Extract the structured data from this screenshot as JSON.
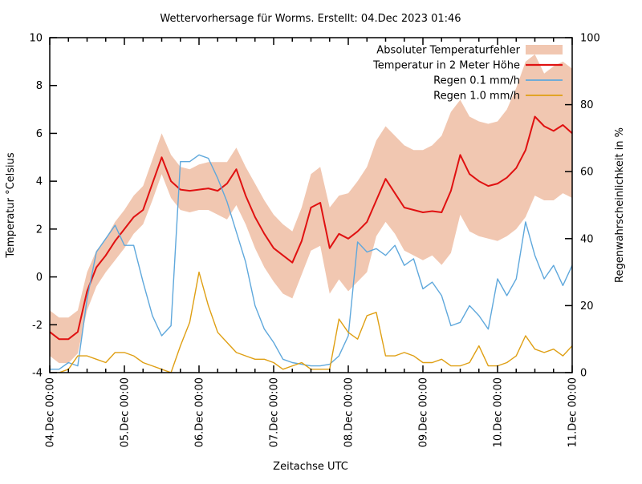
{
  "title": "Wettervorhersage für Worms. Erstellt: 04.Dec 2023 01:46",
  "background": "#ffffff",
  "text_color": "#000000",
  "chart_data": {
    "type": "line",
    "title": "Wettervorhersage für Worms. Erstellt: 04.Dec 2023 01:46",
    "xlabel": "Zeitachse UTC",
    "ylabel_left": "Temperatur °Celsius",
    "ylabel_right": "Regenwahrscheinlichkeit in %",
    "x_tick_labels": [
      "04.Dec 00:00",
      "05.Dec 00:00",
      "06.Dec 00:00",
      "07.Dec 00:00",
      "08.Dec 00:00",
      "09.Dec 00:00",
      "10.Dec 00:00",
      "11.Dec 00:00"
    ],
    "x_minor_subdivisions_per_day": 4,
    "sample_interval_hours": 3,
    "ylim_left": [
      -4,
      10
    ],
    "yticks_left": [
      -4,
      -2,
      0,
      2,
      4,
      6,
      8,
      10
    ],
    "ylim_right": [
      0,
      100
    ],
    "yticks_right": [
      0,
      20,
      40,
      60,
      80,
      100
    ],
    "grid": false,
    "legend_position": "top-right-inside",
    "series": [
      {
        "name": "Absoluter Temperaturfehler",
        "type": "band",
        "axis": "left",
        "color": "#f1c7b1",
        "upper": [
          -1.4,
          -1.7,
          -1.7,
          -1.4,
          0.2,
          1.1,
          1.6,
          2.3,
          2.8,
          3.4,
          3.8,
          4.9,
          6.0,
          5.1,
          4.6,
          4.5,
          4.7,
          4.8,
          4.8,
          4.8,
          5.4,
          4.6,
          3.9,
          3.2,
          2.6,
          2.2,
          1.9,
          2.9,
          4.3,
          4.6,
          2.9,
          3.4,
          3.5,
          4.0,
          4.6,
          5.7,
          6.3,
          5.9,
          5.5,
          5.3,
          5.3,
          5.5,
          5.9,
          6.9,
          7.4,
          6.7,
          6.5,
          6.4,
          6.5,
          7.0,
          7.9,
          9.0,
          9.3,
          8.5,
          8.8,
          9.0,
          8.7
        ],
        "lower": [
          -3.3,
          -3.6,
          -3.6,
          -3.2,
          -1.4,
          -0.4,
          0.2,
          0.7,
          1.2,
          1.8,
          2.2,
          3.2,
          4.3,
          3.3,
          2.8,
          2.7,
          2.8,
          2.8,
          2.6,
          2.4,
          3.0,
          2.2,
          1.2,
          0.4,
          -0.2,
          -0.7,
          -0.9,
          0.1,
          1.1,
          1.3,
          -0.7,
          -0.1,
          -0.6,
          -0.2,
          0.2,
          1.7,
          2.3,
          1.8,
          1.1,
          0.9,
          0.7,
          0.9,
          0.5,
          1.0,
          2.6,
          1.9,
          1.7,
          1.6,
          1.5,
          1.7,
          2.0,
          2.5,
          3.4,
          3.2,
          3.2,
          3.5,
          3.3
        ]
      },
      {
        "name": "Temperatur in 2 Meter Höhe",
        "type": "line",
        "axis": "left",
        "color": "#e01111",
        "width": 2,
        "values": [
          -2.3,
          -2.6,
          -2.6,
          -2.3,
          -0.6,
          0.4,
          0.9,
          1.5,
          2.0,
          2.5,
          2.8,
          3.9,
          5.0,
          4.0,
          3.65,
          3.6,
          3.65,
          3.7,
          3.6,
          3.9,
          4.5,
          3.4,
          2.5,
          1.8,
          1.2,
          0.9,
          0.6,
          1.5,
          2.9,
          3.1,
          1.2,
          1.8,
          1.6,
          1.9,
          2.3,
          3.2,
          4.1,
          3.5,
          2.9,
          2.8,
          2.7,
          2.75,
          2.7,
          3.6,
          5.1,
          4.3,
          4.0,
          3.8,
          3.9,
          4.15,
          4.55,
          5.3,
          6.7,
          6.3,
          6.1,
          6.35,
          6.0
        ]
      },
      {
        "name": "Regen 0.1 mm/h",
        "type": "line",
        "axis": "right",
        "color": "#5fa8dc",
        "width": 1.4,
        "values": [
          1,
          1,
          3,
          2,
          22,
          36,
          40,
          44,
          38,
          38,
          27,
          17,
          11,
          14,
          63,
          63,
          65,
          64,
          58,
          51,
          42,
          33,
          20,
          13,
          9,
          4,
          3,
          2.5,
          2,
          2,
          2.5,
          5,
          11,
          39,
          36,
          37,
          35,
          38,
          32,
          34,
          25,
          27,
          23,
          14,
          15,
          20,
          17,
          13,
          28,
          23,
          28,
          45,
          35,
          28,
          32,
          26,
          32
        ]
      },
      {
        "name": "Regen 1.0 mm/h",
        "type": "line",
        "axis": "right",
        "color": "#df9f13",
        "width": 1.4,
        "values": [
          0,
          0,
          1,
          5,
          5,
          4,
          3,
          6,
          6,
          5,
          3,
          2,
          1,
          0,
          8,
          15,
          30,
          20,
          12,
          9,
          6,
          5,
          4,
          4,
          3,
          1,
          2,
          3,
          1,
          1,
          1,
          16,
          12,
          10,
          17,
          18,
          5,
          5,
          6,
          5,
          3,
          3,
          4,
          2,
          2,
          3,
          8,
          2,
          2,
          3,
          5,
          11,
          7,
          6,
          7,
          5,
          8
        ]
      }
    ]
  }
}
